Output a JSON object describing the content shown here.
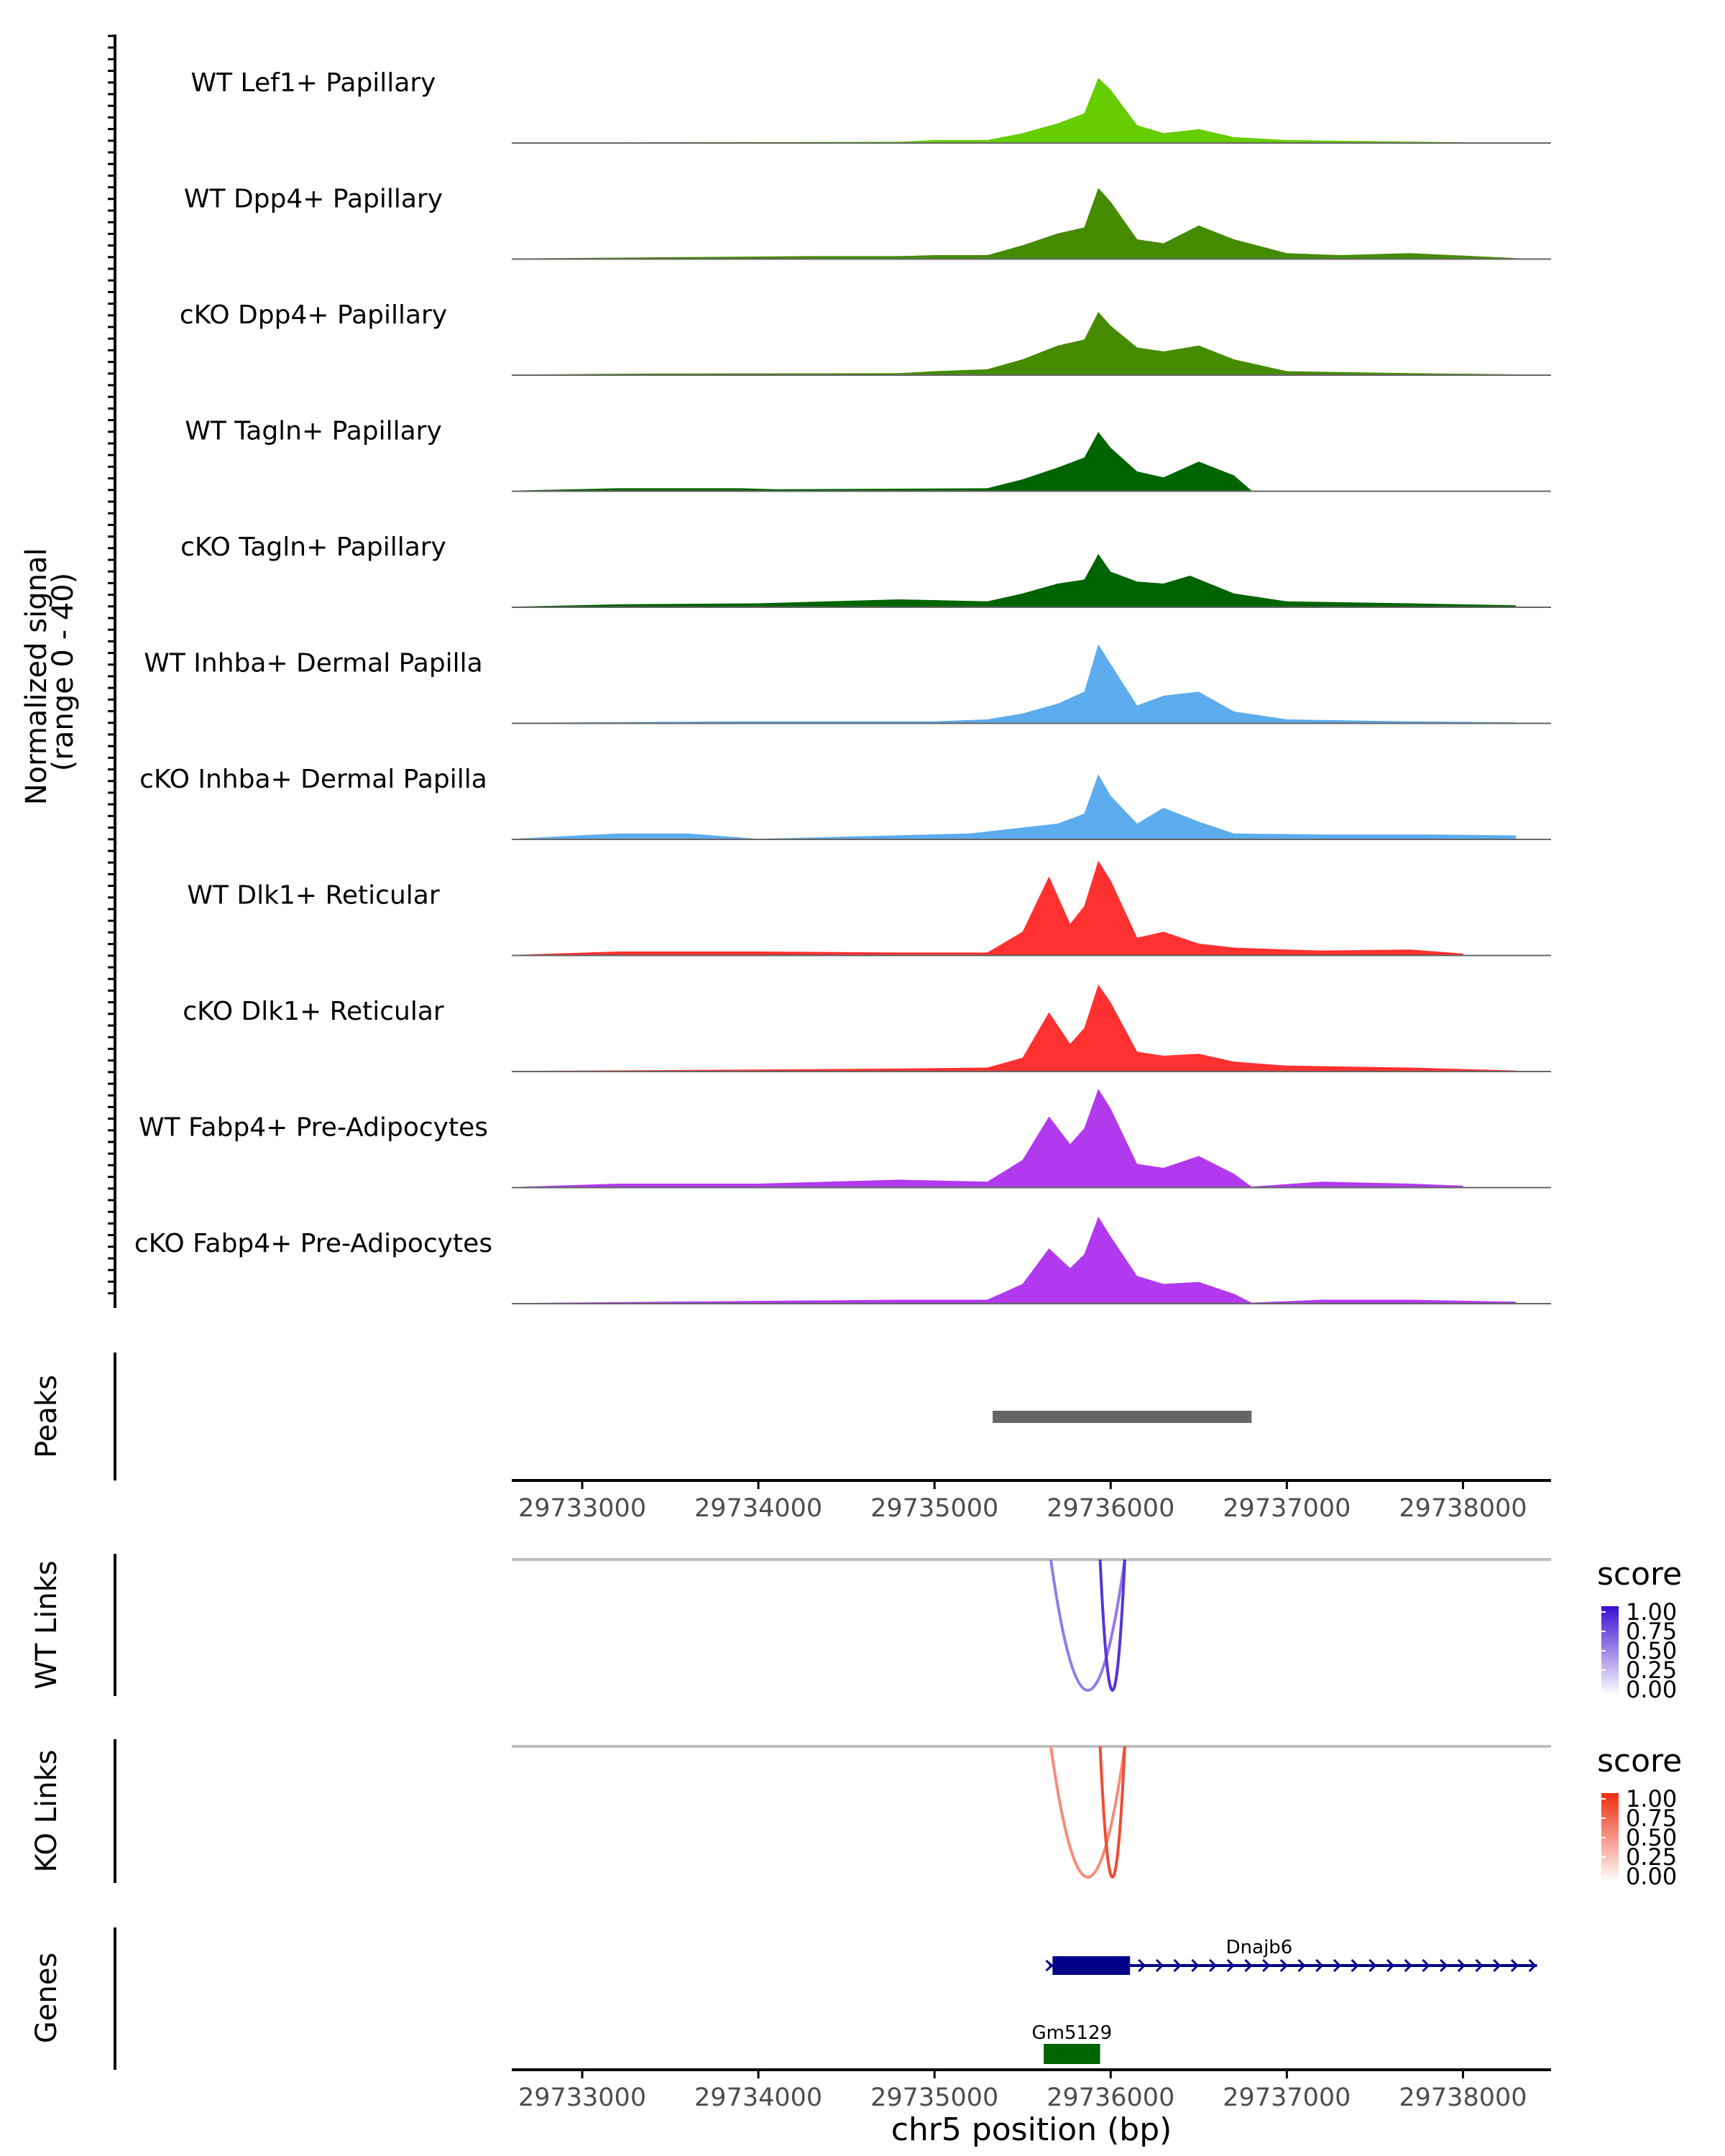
{
  "chart_data": {
    "type": "area",
    "title": "",
    "xlabel": "chr5 position (bp)",
    "ylabel": "Normalized signal\n(range 0 - 40)",
    "ylabel_lines": [
      "Normalized signal",
      "(range 0 - 40)"
    ],
    "yrange": [
      0,
      40
    ],
    "xlim": [
      29732600,
      29738500
    ],
    "x_ticks": [
      29733000,
      29734000,
      29735000,
      29736000,
      29737000,
      29738000
    ],
    "x_tick_labels": [
      "29733000",
      "29734000",
      "29735000",
      "29736000",
      "29737000",
      "29738000"
    ],
    "tracks": [
      {
        "name": "WT Lef1+ Papillary",
        "color": "#66CD00",
        "profile": [
          [
            29732600,
            0.3
          ],
          [
            29734800,
            0.6
          ],
          [
            29735000,
            1.5
          ],
          [
            29735300,
            1.5
          ],
          [
            29735500,
            5
          ],
          [
            29735700,
            10
          ],
          [
            29735850,
            15
          ],
          [
            29735930,
            33
          ],
          [
            29736000,
            27
          ],
          [
            29736150,
            9
          ],
          [
            29736300,
            5
          ],
          [
            29736500,
            7
          ],
          [
            29736700,
            3
          ],
          [
            29737000,
            1.5
          ],
          [
            29737600,
            0.8
          ],
          [
            29738100,
            0.3
          ]
        ]
      },
      {
        "name": "WT Dpp4+ Papillary",
        "color": "#458B00",
        "profile": [
          [
            29732600,
            0.3
          ],
          [
            29734300,
            1.5
          ],
          [
            29734800,
            1.5
          ],
          [
            29735000,
            2
          ],
          [
            29735300,
            2
          ],
          [
            29735500,
            7
          ],
          [
            29735700,
            13
          ],
          [
            29735850,
            16
          ],
          [
            29735930,
            36
          ],
          [
            29736000,
            29
          ],
          [
            29736150,
            10
          ],
          [
            29736300,
            8
          ],
          [
            29736500,
            17
          ],
          [
            29736700,
            10
          ],
          [
            29737000,
            3
          ],
          [
            29737300,
            2
          ],
          [
            29737700,
            3
          ],
          [
            29738300,
            0.5
          ]
        ]
      },
      {
        "name": "cKO Dpp4+ Papillary",
        "color": "#458B00",
        "profile": [
          [
            29732600,
            0.3
          ],
          [
            29733400,
            0.8
          ],
          [
            29734800,
            1
          ],
          [
            29735000,
            2
          ],
          [
            29735300,
            3
          ],
          [
            29735500,
            8
          ],
          [
            29735700,
            15
          ],
          [
            29735850,
            18
          ],
          [
            29735930,
            32
          ],
          [
            29736000,
            25
          ],
          [
            29736150,
            14
          ],
          [
            29736300,
            12
          ],
          [
            29736500,
            15
          ],
          [
            29736700,
            8
          ],
          [
            29737000,
            2
          ],
          [
            29737700,
            1
          ],
          [
            29738300,
            0.4
          ]
        ]
      },
      {
        "name": "WT Tagln+ Papillary",
        "color": "#006400",
        "profile": [
          [
            29732600,
            0.3
          ],
          [
            29733200,
            1.5
          ],
          [
            29733900,
            1.5
          ],
          [
            29734100,
            1
          ],
          [
            29735300,
            1.5
          ],
          [
            29735500,
            6
          ],
          [
            29735700,
            12
          ],
          [
            29735850,
            17
          ],
          [
            29735930,
            30
          ],
          [
            29736000,
            22
          ],
          [
            29736150,
            10
          ],
          [
            29736300,
            7
          ],
          [
            29736500,
            15
          ],
          [
            29736700,
            8
          ],
          [
            29736800,
            0.3
          ]
        ]
      },
      {
        "name": "cKO Tagln+ Papillary",
        "color": "#006400",
        "profile": [
          [
            29732600,
            0.3
          ],
          [
            29733200,
            1.5
          ],
          [
            29734000,
            2
          ],
          [
            29734800,
            4
          ],
          [
            29735300,
            3
          ],
          [
            29735500,
            7
          ],
          [
            29735700,
            12
          ],
          [
            29735850,
            14
          ],
          [
            29735930,
            27
          ],
          [
            29736000,
            18
          ],
          [
            29736150,
            13
          ],
          [
            29736300,
            12
          ],
          [
            29736450,
            16
          ],
          [
            29736700,
            7
          ],
          [
            29737000,
            3
          ],
          [
            29737700,
            2
          ],
          [
            29738300,
            1
          ]
        ]
      },
      {
        "name": "WT Inhba+ Dermal Papilla",
        "color": "#5CACEE",
        "profile": [
          [
            29732600,
            0.3
          ],
          [
            29733900,
            1
          ],
          [
            29735000,
            1
          ],
          [
            29735300,
            2
          ],
          [
            29735500,
            5
          ],
          [
            29735700,
            10
          ],
          [
            29735850,
            16
          ],
          [
            29735930,
            40
          ],
          [
            29736000,
            30
          ],
          [
            29736150,
            9
          ],
          [
            29736300,
            14
          ],
          [
            29736500,
            16
          ],
          [
            29736700,
            6
          ],
          [
            29737000,
            2
          ],
          [
            29737700,
            1
          ],
          [
            29738300,
            0.5
          ]
        ]
      },
      {
        "name": "cKO Inhba+ Dermal Papilla",
        "color": "#5CACEE",
        "profile": [
          [
            29732600,
            0.3
          ],
          [
            29733200,
            3
          ],
          [
            29733600,
            3
          ],
          [
            29734000,
            0.3
          ],
          [
            29735200,
            3
          ],
          [
            29735500,
            6
          ],
          [
            29735700,
            8
          ],
          [
            29735850,
            13
          ],
          [
            29735930,
            33
          ],
          [
            29736000,
            22
          ],
          [
            29736150,
            8
          ],
          [
            29736300,
            16
          ],
          [
            29736500,
            9
          ],
          [
            29736700,
            3
          ],
          [
            29737200,
            2.5
          ],
          [
            29737800,
            2.5
          ],
          [
            29738300,
            2
          ]
        ]
      },
      {
        "name": "WT Dlk1+ Reticular",
        "color": "#FF3030",
        "profile": [
          [
            29732600,
            0.3
          ],
          [
            29733200,
            2
          ],
          [
            29734000,
            2
          ],
          [
            29734800,
            1.5
          ],
          [
            29735300,
            1.5
          ],
          [
            29735500,
            12
          ],
          [
            29735650,
            40
          ],
          [
            29735770,
            16
          ],
          [
            29735850,
            25
          ],
          [
            29735930,
            48
          ],
          [
            29736000,
            38
          ],
          [
            29736150,
            9
          ],
          [
            29736300,
            12
          ],
          [
            29736500,
            6
          ],
          [
            29736700,
            4
          ],
          [
            29737000,
            3
          ],
          [
            29737200,
            2.5
          ],
          [
            29737700,
            3
          ],
          [
            29738000,
            1
          ]
        ]
      },
      {
        "name": "cKO Dlk1+ Reticular",
        "color": "#FF3030",
        "profile": [
          [
            29732600,
            0.3
          ],
          [
            29734000,
            1
          ],
          [
            29734800,
            1.5
          ],
          [
            29735300,
            2
          ],
          [
            29735500,
            7
          ],
          [
            29735650,
            30
          ],
          [
            29735770,
            14
          ],
          [
            29735850,
            22
          ],
          [
            29735930,
            44
          ],
          [
            29736000,
            35
          ],
          [
            29736150,
            10
          ],
          [
            29736300,
            8
          ],
          [
            29736500,
            9
          ],
          [
            29736700,
            5
          ],
          [
            29737000,
            3
          ],
          [
            29737700,
            2
          ],
          [
            29738300,
            0.5
          ]
        ]
      },
      {
        "name": "WT Fabp4+ Pre-Adipocytes",
        "color": "#B23AEE",
        "profile": [
          [
            29732600,
            0.3
          ],
          [
            29733200,
            2
          ],
          [
            29734000,
            2
          ],
          [
            29734800,
            4
          ],
          [
            29735300,
            3
          ],
          [
            29735500,
            14
          ],
          [
            29735650,
            36
          ],
          [
            29735770,
            22
          ],
          [
            29735850,
            30
          ],
          [
            29735930,
            50
          ],
          [
            29736000,
            40
          ],
          [
            29736150,
            12
          ],
          [
            29736300,
            10
          ],
          [
            29736500,
            16
          ],
          [
            29736700,
            7
          ],
          [
            29736800,
            0.5
          ],
          [
            29737200,
            3
          ],
          [
            29737700,
            2
          ],
          [
            29738000,
            1
          ]
        ]
      },
      {
        "name": "cKO Fabp4+ Pre-Adipocytes",
        "color": "#B23AEE",
        "profile": [
          [
            29732600,
            0.3
          ],
          [
            29734800,
            2
          ],
          [
            29735300,
            2
          ],
          [
            29735500,
            10
          ],
          [
            29735650,
            28
          ],
          [
            29735770,
            18
          ],
          [
            29735850,
            25
          ],
          [
            29735930,
            44
          ],
          [
            29736000,
            34
          ],
          [
            29736150,
            14
          ],
          [
            29736300,
            10
          ],
          [
            29736500,
            11
          ],
          [
            29736700,
            5
          ],
          [
            29736800,
            0.5
          ],
          [
            29737200,
            2
          ],
          [
            29737700,
            2
          ],
          [
            29738300,
            1
          ]
        ]
      }
    ],
    "peaks": {
      "label": "Peaks",
      "color": "#666666",
      "regions": [
        [
          29735330,
          29736800
        ]
      ]
    },
    "wt_links": {
      "label": "WT Links",
      "legend_title": "score",
      "legend_ticks": [
        "1.00",
        "0.75",
        "0.50",
        "0.25",
        "0.00"
      ],
      "color_high": "#3A0FD0",
      "color_low": "#FFFFFF",
      "baseline_color": "#BEBEBE",
      "links": [
        {
          "start": 29735660,
          "end": 29736080,
          "score": 0.55
        },
        {
          "start": 29735940,
          "end": 29736080,
          "score": 0.85
        }
      ]
    },
    "ko_links": {
      "label": "KO Links",
      "legend_title": "score",
      "legend_ticks": [
        "1.00",
        "0.75",
        "0.50",
        "0.25",
        "0.00"
      ],
      "color_high": "#EE2C0F",
      "color_low": "#FFFFFF",
      "baseline_color": "#BEBEBE",
      "links": [
        {
          "start": 29735660,
          "end": 29736080,
          "score": 0.55
        },
        {
          "start": 29735940,
          "end": 29736080,
          "score": 0.85
        }
      ]
    },
    "genes": {
      "label": "Genes",
      "items": [
        {
          "name": "Dnajb6",
          "start": 29735650,
          "end": 29738420,
          "exon_start": 29735670,
          "exon_end": 29736110,
          "strand": "+",
          "color": "#00008B"
        },
        {
          "name": "Gm5129",
          "start": 29735620,
          "end": 29735940,
          "exon_start": 29735620,
          "exon_end": 29735940,
          "strand": "",
          "color": "#006400"
        }
      ]
    }
  }
}
